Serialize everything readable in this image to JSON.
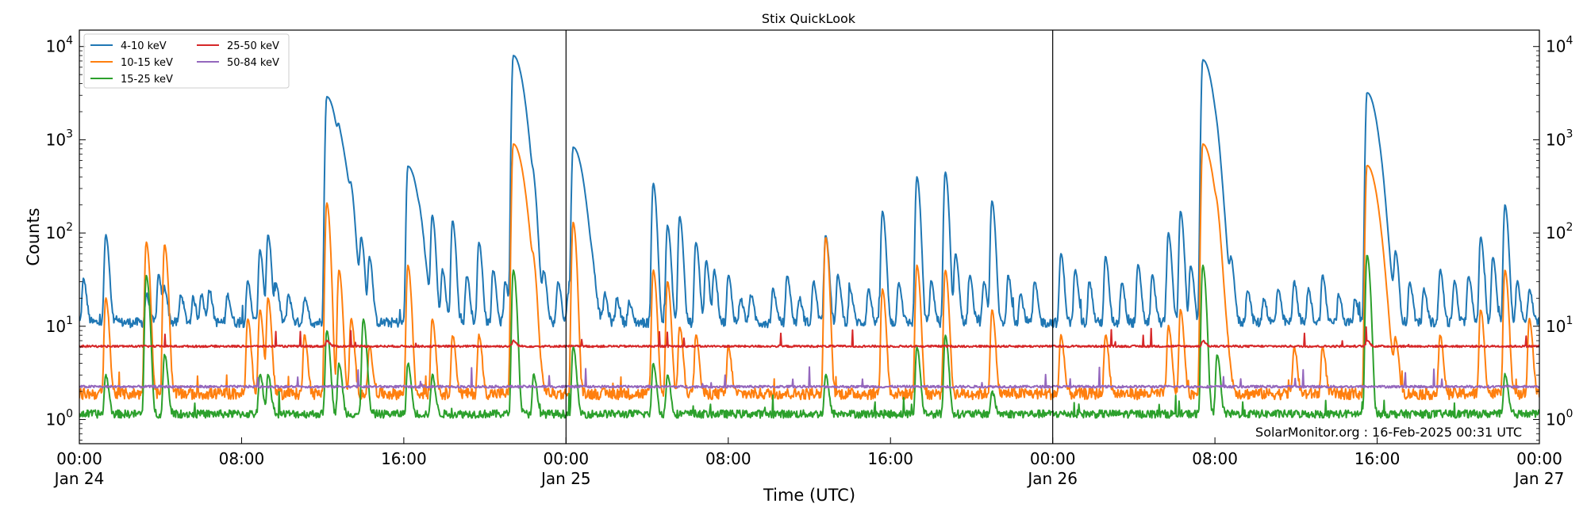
{
  "chart_data": {
    "type": "line",
    "title": "Stix QuickLook",
    "xlabel": "Time (UTC)",
    "ylabel": "Counts",
    "yscale": "log",
    "ylim": [
      0.55,
      15000
    ],
    "xlim_hours": [
      0,
      72
    ],
    "x_ticks": [
      {
        "hour": 0,
        "line1": "00:00",
        "line2": "Jan 24"
      },
      {
        "hour": 8,
        "line1": "08:00",
        "line2": ""
      },
      {
        "hour": 16,
        "line1": "16:00",
        "line2": ""
      },
      {
        "hour": 24,
        "line1": "00:00",
        "line2": "Jan 25"
      },
      {
        "hour": 32,
        "line1": "08:00",
        "line2": ""
      },
      {
        "hour": 40,
        "line1": "16:00",
        "line2": ""
      },
      {
        "hour": 48,
        "line1": "00:00",
        "line2": "Jan 26"
      },
      {
        "hour": 56,
        "line1": "08:00",
        "line2": ""
      },
      {
        "hour": 64,
        "line1": "16:00",
        "line2": ""
      },
      {
        "hour": 72,
        "line1": "00:00",
        "line2": "Jan 27"
      }
    ],
    "y_ticks": [
      {
        "value": 1,
        "base": "10",
        "exp": "0"
      },
      {
        "value": 10,
        "base": "10",
        "exp": "1"
      },
      {
        "value": 100,
        "base": "10",
        "exp": "2"
      },
      {
        "value": 1000,
        "base": "10",
        "exp": "3"
      },
      {
        "value": 10000,
        "base": "10",
        "exp": "4"
      }
    ],
    "day_boundaries_hours": [
      24,
      48
    ],
    "annotation": "SolarMonitor.org : 16-Feb-2025 00:31 UTC",
    "legend_location": "upper-left",
    "series": [
      {
        "name": "4-10 keV",
        "color": "#1f77b4",
        "baseline": 11,
        "noise": 0.12,
        "peaks": [
          {
            "t": 0.2,
            "v": 32
          },
          {
            "t": 1.3,
            "v": 95
          },
          {
            "t": 3.3,
            "v": 22
          },
          {
            "t": 3.9,
            "v": 35
          },
          {
            "t": 4.2,
            "v": 25
          },
          {
            "t": 5.0,
            "v": 22
          },
          {
            "t": 5.6,
            "v": 20
          },
          {
            "t": 6.0,
            "v": 22
          },
          {
            "t": 6.4,
            "v": 25
          },
          {
            "t": 7.3,
            "v": 22
          },
          {
            "t": 8.3,
            "v": 30
          },
          {
            "t": 8.9,
            "v": 65
          },
          {
            "t": 9.3,
            "v": 95
          },
          {
            "t": 9.7,
            "v": 28
          },
          {
            "t": 10.3,
            "v": 22
          },
          {
            "t": 11.1,
            "v": 20
          },
          {
            "t": 12.2,
            "v": 2900
          },
          {
            "t": 12.8,
            "v": 600
          },
          {
            "t": 13.4,
            "v": 140
          },
          {
            "t": 13.9,
            "v": 80
          },
          {
            "t": 14.3,
            "v": 55
          },
          {
            "t": 16.2,
            "v": 520
          },
          {
            "t": 16.8,
            "v": 30
          },
          {
            "t": 17.4,
            "v": 150
          },
          {
            "t": 17.9,
            "v": 40
          },
          {
            "t": 18.4,
            "v": 135
          },
          {
            "t": 19.1,
            "v": 35
          },
          {
            "t": 19.7,
            "v": 80
          },
          {
            "t": 20.4,
            "v": 40
          },
          {
            "t": 21.0,
            "v": 30
          },
          {
            "t": 21.4,
            "v": 8000
          },
          {
            "t": 22.4,
            "v": 160
          },
          {
            "t": 22.9,
            "v": 35
          },
          {
            "t": 23.6,
            "v": 30
          },
          {
            "t": 24.1,
            "v": 22
          },
          {
            "t": 24.35,
            "v": 830
          },
          {
            "t": 25.3,
            "v": 20
          },
          {
            "t": 25.9,
            "v": 22
          },
          {
            "t": 26.5,
            "v": 20
          },
          {
            "t": 27.1,
            "v": 18
          },
          {
            "t": 28.3,
            "v": 340
          },
          {
            "t": 29.0,
            "v": 120
          },
          {
            "t": 29.6,
            "v": 150
          },
          {
            "t": 30.4,
            "v": 80
          },
          {
            "t": 30.9,
            "v": 50
          },
          {
            "t": 31.3,
            "v": 40
          },
          {
            "t": 32.0,
            "v": 35
          },
          {
            "t": 32.6,
            "v": 20
          },
          {
            "t": 33.1,
            "v": 22
          },
          {
            "t": 34.2,
            "v": 25
          },
          {
            "t": 34.9,
            "v": 35
          },
          {
            "t": 35.5,
            "v": 20
          },
          {
            "t": 36.2,
            "v": 30
          },
          {
            "t": 36.8,
            "v": 95
          },
          {
            "t": 37.4,
            "v": 35
          },
          {
            "t": 38.0,
            "v": 25
          },
          {
            "t": 38.9,
            "v": 25
          },
          {
            "t": 39.6,
            "v": 170
          },
          {
            "t": 40.4,
            "v": 30
          },
          {
            "t": 41.3,
            "v": 400
          },
          {
            "t": 42.0,
            "v": 30
          },
          {
            "t": 42.7,
            "v": 450
          },
          {
            "t": 43.2,
            "v": 60
          },
          {
            "t": 43.9,
            "v": 35
          },
          {
            "t": 44.6,
            "v": 30
          },
          {
            "t": 45.0,
            "v": 220
          },
          {
            "t": 45.8,
            "v": 35
          },
          {
            "t": 46.4,
            "v": 22
          },
          {
            "t": 47.1,
            "v": 30
          },
          {
            "t": 48.4,
            "v": 60
          },
          {
            "t": 49.1,
            "v": 40
          },
          {
            "t": 49.8,
            "v": 30
          },
          {
            "t": 50.6,
            "v": 55
          },
          {
            "t": 51.4,
            "v": 30
          },
          {
            "t": 52.2,
            "v": 45
          },
          {
            "t": 52.9,
            "v": 35
          },
          {
            "t": 53.7,
            "v": 100
          },
          {
            "t": 54.3,
            "v": 170
          },
          {
            "t": 54.8,
            "v": 45
          },
          {
            "t": 55.4,
            "v": 7200
          },
          {
            "t": 56.1,
            "v": 120
          },
          {
            "t": 56.8,
            "v": 45
          },
          {
            "t": 57.6,
            "v": 25
          },
          {
            "t": 58.4,
            "v": 20
          },
          {
            "t": 59.1,
            "v": 25
          },
          {
            "t": 59.9,
            "v": 30
          },
          {
            "t": 60.6,
            "v": 25
          },
          {
            "t": 61.3,
            "v": 35
          },
          {
            "t": 62.1,
            "v": 22
          },
          {
            "t": 62.9,
            "v": 20
          },
          {
            "t": 63.5,
            "v": 3200
          },
          {
            "t": 64.2,
            "v": 35
          },
          {
            "t": 64.9,
            "v": 60
          },
          {
            "t": 65.6,
            "v": 30
          },
          {
            "t": 66.3,
            "v": 25
          },
          {
            "t": 67.1,
            "v": 40
          },
          {
            "t": 67.8,
            "v": 30
          },
          {
            "t": 68.5,
            "v": 35
          },
          {
            "t": 69.1,
            "v": 90
          },
          {
            "t": 69.7,
            "v": 55
          },
          {
            "t": 70.3,
            "v": 200
          },
          {
            "t": 70.9,
            "v": 30
          },
          {
            "t": 71.5,
            "v": 25
          }
        ]
      },
      {
        "name": "10-15 keV",
        "color": "#ff7f0e",
        "baseline": 1.9,
        "noise": 0.14,
        "peaks": [
          {
            "t": 1.3,
            "v": 20
          },
          {
            "t": 3.3,
            "v": 80
          },
          {
            "t": 4.2,
            "v": 75
          },
          {
            "t": 8.3,
            "v": 12
          },
          {
            "t": 8.9,
            "v": 15
          },
          {
            "t": 9.3,
            "v": 20
          },
          {
            "t": 11.1,
            "v": 8
          },
          {
            "t": 12.2,
            "v": 210
          },
          {
            "t": 12.8,
            "v": 40
          },
          {
            "t": 13.4,
            "v": 12
          },
          {
            "t": 14.3,
            "v": 6
          },
          {
            "t": 16.2,
            "v": 45
          },
          {
            "t": 17.4,
            "v": 12
          },
          {
            "t": 18.4,
            "v": 8
          },
          {
            "t": 19.7,
            "v": 8
          },
          {
            "t": 21.4,
            "v": 900
          },
          {
            "t": 22.4,
            "v": 25
          },
          {
            "t": 24.35,
            "v": 130
          },
          {
            "t": 28.3,
            "v": 40
          },
          {
            "t": 29.0,
            "v": 30
          },
          {
            "t": 29.6,
            "v": 10
          },
          {
            "t": 30.4,
            "v": 8
          },
          {
            "t": 32.0,
            "v": 6
          },
          {
            "t": 36.8,
            "v": 90
          },
          {
            "t": 39.6,
            "v": 25
          },
          {
            "t": 41.3,
            "v": 45
          },
          {
            "t": 42.7,
            "v": 40
          },
          {
            "t": 45.0,
            "v": 15
          },
          {
            "t": 48.4,
            "v": 8
          },
          {
            "t": 50.6,
            "v": 8
          },
          {
            "t": 53.7,
            "v": 10
          },
          {
            "t": 54.3,
            "v": 15
          },
          {
            "t": 55.4,
            "v": 900
          },
          {
            "t": 56.1,
            "v": 45
          },
          {
            "t": 59.9,
            "v": 6
          },
          {
            "t": 61.3,
            "v": 6
          },
          {
            "t": 63.5,
            "v": 530
          },
          {
            "t": 64.9,
            "v": 7
          },
          {
            "t": 67.1,
            "v": 8
          },
          {
            "t": 69.1,
            "v": 15
          },
          {
            "t": 70.3,
            "v": 40
          },
          {
            "t": 71.5,
            "v": 12
          }
        ]
      },
      {
        "name": "15-25 keV",
        "color": "#2ca02c",
        "baseline": 1.15,
        "noise": 0.1,
        "peaks": [
          {
            "t": 1.3,
            "v": 3
          },
          {
            "t": 3.3,
            "v": 35
          },
          {
            "t": 4.2,
            "v": 5
          },
          {
            "t": 8.9,
            "v": 3
          },
          {
            "t": 9.3,
            "v": 3
          },
          {
            "t": 12.2,
            "v": 9
          },
          {
            "t": 12.8,
            "v": 4
          },
          {
            "t": 14.0,
            "v": 12
          },
          {
            "t": 16.2,
            "v": 4
          },
          {
            "t": 17.4,
            "v": 3
          },
          {
            "t": 21.4,
            "v": 40
          },
          {
            "t": 22.4,
            "v": 3
          },
          {
            "t": 24.35,
            "v": 6
          },
          {
            "t": 28.3,
            "v": 4
          },
          {
            "t": 29.0,
            "v": 3
          },
          {
            "t": 36.8,
            "v": 3
          },
          {
            "t": 41.3,
            "v": 6
          },
          {
            "t": 42.7,
            "v": 8
          },
          {
            "t": 45.0,
            "v": 2
          },
          {
            "t": 55.4,
            "v": 45
          },
          {
            "t": 56.1,
            "v": 5
          },
          {
            "t": 63.5,
            "v": 58
          },
          {
            "t": 70.3,
            "v": 3
          }
        ]
      },
      {
        "name": "25-50 keV",
        "color": "#d62728",
        "baseline": 6.1,
        "noise": 0.025,
        "peaks": [
          {
            "t": 12.2,
            "v": 7
          },
          {
            "t": 21.4,
            "v": 7
          },
          {
            "t": 55.4,
            "v": 7
          },
          {
            "t": 63.5,
            "v": 7
          }
        ]
      },
      {
        "name": "50-84 keV",
        "color": "#9467bd",
        "baseline": 2.25,
        "noise": 0.03,
        "peaks": []
      }
    ]
  }
}
